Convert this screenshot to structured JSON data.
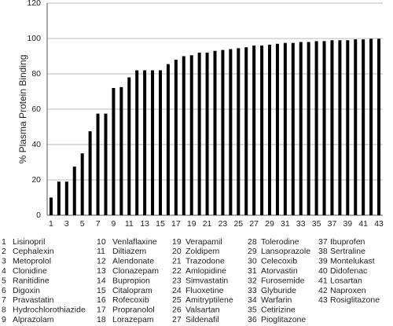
{
  "chart_data": {
    "type": "bar",
    "y_label": "% Plasma Protein Binding",
    "categories": [
      "1",
      null,
      "3",
      null,
      "5",
      null,
      "7",
      null,
      "9",
      null,
      "11",
      null,
      "13",
      null,
      "15",
      null,
      "17",
      null,
      "19",
      null,
      "21",
      null,
      "23",
      null,
      "25",
      null,
      "27",
      null,
      "29",
      null,
      "31",
      null,
      "33",
      null,
      "35",
      null,
      "37",
      null,
      "39",
      null,
      "41",
      null,
      "43"
    ],
    "values": [
      10,
      19,
      19,
      27.5,
      35,
      47.5,
      57.5,
      57.5,
      72,
      72.5,
      78,
      82,
      82,
      82,
      82,
      85.5,
      88,
      90,
      90.5,
      92,
      92,
      93,
      93.5,
      94,
      94.5,
      95,
      96,
      96,
      96.5,
      97,
      97.5,
      97.5,
      98,
      98,
      98.5,
      98.5,
      99,
      99,
      99,
      99.5,
      99.5,
      99.8,
      99.8
    ],
    "color": "#000000",
    "ylim": [
      0,
      120
    ],
    "yticks": [
      0,
      20,
      40,
      60,
      80,
      100,
      120
    ],
    "grid": true
  },
  "drug_key": [
    {
      "number": 1,
      "name": "Lisinopril"
    },
    {
      "number": 2,
      "name": "Cephalexin"
    },
    {
      "number": 3,
      "name": "Metoprolol"
    },
    {
      "number": 4,
      "name": "Clonidine"
    },
    {
      "number": 5,
      "name": "Ranitidine"
    },
    {
      "number": 6,
      "name": "Digoxin"
    },
    {
      "number": 7,
      "name": "Pravastatin"
    },
    {
      "number": 8,
      "name": "Hydrochlorothiazide"
    },
    {
      "number": 9,
      "name": "Alprazolam"
    },
    {
      "number": 10,
      "name": "Venlaflaxine"
    },
    {
      "number": 11,
      "name": "Diltiazem"
    },
    {
      "number": 12,
      "name": "Alendonate"
    },
    {
      "number": 13,
      "name": "Clonazepam"
    },
    {
      "number": 14,
      "name": "Bupropion"
    },
    {
      "number": 15,
      "name": "Citalopram"
    },
    {
      "number": 16,
      "name": "Rofecoxib"
    },
    {
      "number": 17,
      "name": "Propranolol"
    },
    {
      "number": 18,
      "name": "Lorazepam"
    },
    {
      "number": 19,
      "name": "Verapamil"
    },
    {
      "number": 20,
      "name": "Zoldipem"
    },
    {
      "number": 21,
      "name": "Trazodone"
    },
    {
      "number": 22,
      "name": "Amlopidine"
    },
    {
      "number": 23,
      "name": "Simvastatin"
    },
    {
      "number": 24,
      "name": "Fluoxetine"
    },
    {
      "number": 25,
      "name": "Amitryptilene"
    },
    {
      "number": 26,
      "name": "Valsartan"
    },
    {
      "number": 27,
      "name": "Sildenafil"
    },
    {
      "number": 28,
      "name": "Tolerodine"
    },
    {
      "number": 29,
      "name": "Lansoprazole"
    },
    {
      "number": 30,
      "name": "Celecoxib"
    },
    {
      "number": 31,
      "name": "Atorvastin"
    },
    {
      "number": 32,
      "name": "Furosemide"
    },
    {
      "number": 33,
      "name": "Glyburide"
    },
    {
      "number": 34,
      "name": "Warfarin"
    },
    {
      "number": 35,
      "name": "Cetirizine"
    },
    {
      "number": 36,
      "name": "Pioglitazone"
    },
    {
      "number": 37,
      "name": "Ibuprofen"
    },
    {
      "number": 38,
      "name": "Sertraline"
    },
    {
      "number": 39,
      "name": "Montelukast"
    },
    {
      "number": 40,
      "name": "Didofenac"
    },
    {
      "number": 41,
      "name": "Losartan"
    },
    {
      "number": 42,
      "name": "Naproxen"
    },
    {
      "number": 43,
      "name": "Rosiglitazone"
    }
  ]
}
